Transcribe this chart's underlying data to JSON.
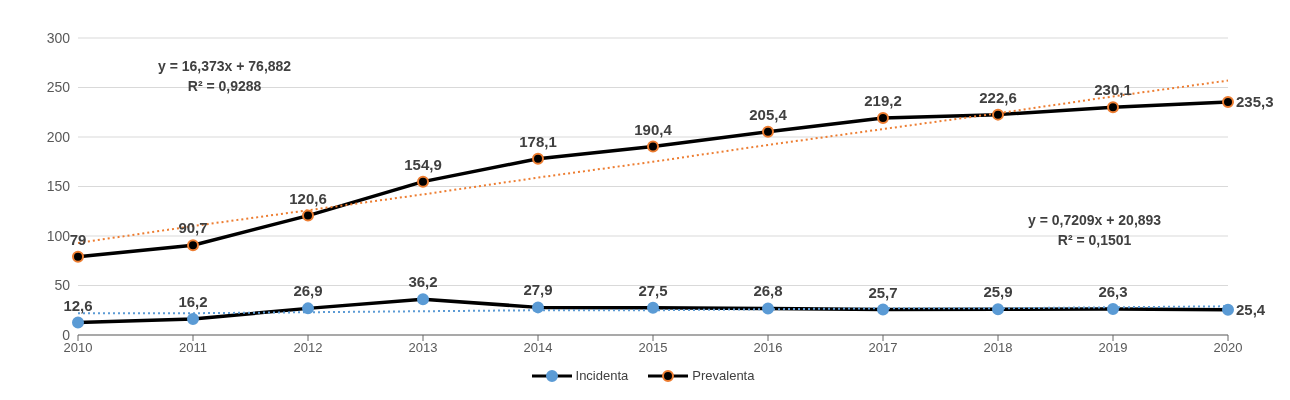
{
  "chart_data": {
    "type": "line",
    "categories": [
      "2010",
      "2011",
      "2012",
      "2013",
      "2014",
      "2015",
      "2016",
      "2017",
      "2018",
      "2019",
      "2020"
    ],
    "series": [
      {
        "name": "Incidenta",
        "color": "#5b9bd5",
        "values": [
          12.6,
          16.2,
          26.9,
          36.2,
          27.9,
          27.5,
          26.8,
          25.7,
          25.9,
          26.3,
          25.4
        ],
        "value_labels": [
          "12,6",
          "16,2",
          "26,9",
          "36,2",
          "27,9",
          "27,5",
          "26,8",
          "25,7",
          "25,9",
          "26,3",
          "25,4"
        ]
      },
      {
        "name": "Prevalenta",
        "color": "#ed7d31",
        "values": [
          79,
          90.7,
          120.6,
          154.9,
          178.1,
          190.4,
          205.4,
          219.2,
          222.6,
          230.1,
          235.3
        ],
        "value_labels": [
          "79",
          "90,7",
          "120,6",
          "154,9",
          "178,1",
          "190,4",
          "205,4",
          "219,2",
          "222,6",
          "230,1",
          "235,3"
        ]
      },
      {
        "type": "line",
        "color": "#5b9bd5",
        "line_style": "dotted",
        "marker": "none",
        "values": [
          22,
          22,
          23,
          24,
          25,
          25,
          26,
          27,
          27,
          28,
          29
        ]
      },
      {
        "type": "line",
        "color": "#ed7d31",
        "line_style": "dotted",
        "marker": "none",
        "values": [
          93,
          110,
          126,
          142,
          159,
          175,
          192,
          208,
          224,
          241,
          257
        ]
      }
    ],
    "ylim": [
      0,
      300
    ],
    "yticks": [
      0,
      50,
      100,
      150,
      200,
      250,
      300
    ],
    "grid": "y",
    "legend": "bottom",
    "marker": "circle",
    "annotations": [
      "y = 16,373x + 76,882\nR² = 0,9288",
      "y = 0,7209x + 20,893\nR² = 0,1501"
    ]
  }
}
